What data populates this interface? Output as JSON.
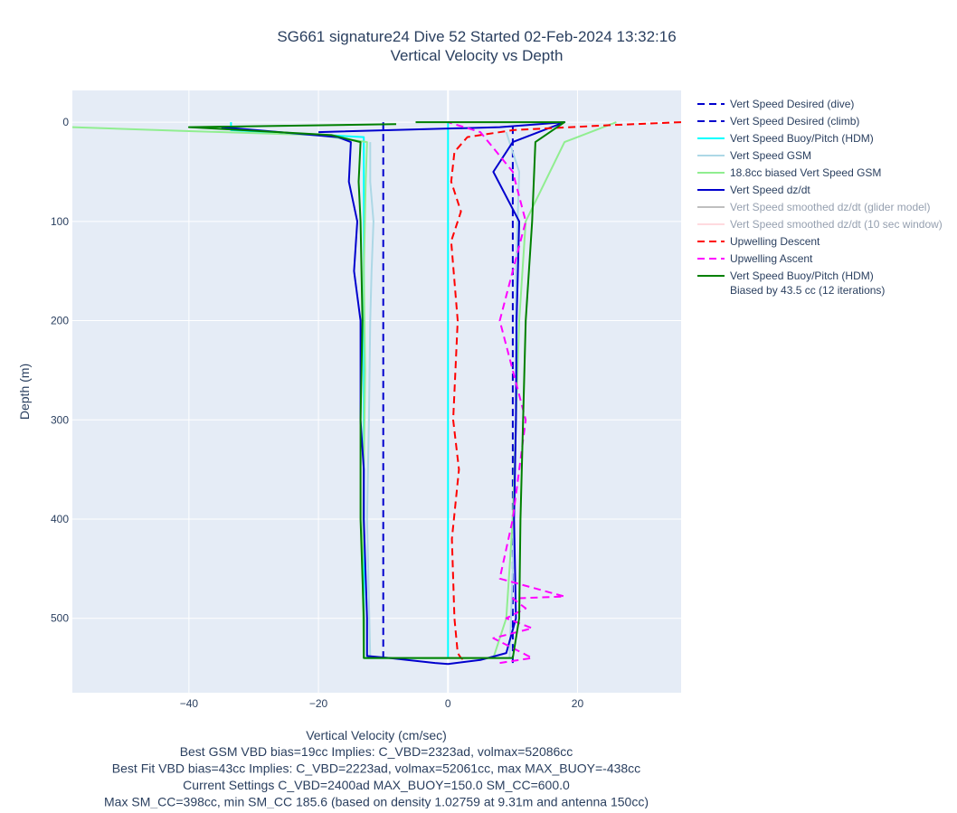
{
  "chart_data": {
    "type": "line",
    "title": "SG661 signature24 Dive 52 Started 02-Feb-2024 13:32:16",
    "subtitle": "Vertical Velocity vs Depth",
    "xlabel": "Vertical Velocity (cm/sec)",
    "ylabel": "Depth (m)",
    "xlim": [
      -58,
      36
    ],
    "ylim": [
      575,
      -32
    ],
    "y_reversed": true,
    "grid": true,
    "legend_position": "right",
    "xticks": [
      -40,
      -20,
      0,
      20
    ],
    "xtick_labels": [
      "−40",
      "−20",
      "0",
      "20"
    ],
    "yticks": [
      0,
      100,
      200,
      300,
      400,
      500
    ],
    "ytick_labels": [
      "0",
      "100",
      "200",
      "300",
      "400",
      "500"
    ],
    "notes": [
      "Best GSM VBD bias=19cc Implies: C_VBD=2323ad, volmax=52086cc",
      "Best Fit VBD bias=43cc Implies: C_VBD=2223ad, volmax=52061cc, max MAX_BUOY=-438cc",
      "Current Settings C_VBD=2400ad MAX_BUOY=150.0 SM_CC=600.0",
      "Max SM_CC=398cc, min SM_CC 185.6 (based on density 1.02759 at 9.31m and antenna 150cc)"
    ],
    "series": [
      {
        "name": "Vert Speed Desired (dive)",
        "color": "#0000cd",
        "dash": "dash",
        "legend_faded": false,
        "x": [
          -10,
          -10
        ],
        "y": [
          0,
          545
        ]
      },
      {
        "name": "Vert Speed Desired (climb)",
        "color": "#0000cd",
        "dash": "dash",
        "legend_faded": false,
        "x": [
          10,
          10
        ],
        "y": [
          545,
          0
        ]
      },
      {
        "name": "Vert Speed Buoy/Pitch (HDM)",
        "color": "#00ffff",
        "dash": "solid",
        "legend_faded": false,
        "x": [
          -33.5,
          -33.5,
          -13,
          -13,
          -13,
          -13,
          0,
          0,
          0,
          0
        ],
        "y": [
          0,
          8,
          15,
          100,
          400,
          540,
          540,
          400,
          50,
          0
        ]
      },
      {
        "name": "Vert Speed GSM",
        "color": "#add8e6",
        "dash": "solid",
        "legend_faded": false,
        "x": [
          -12,
          -12,
          -11.5,
          -11.8,
          -12,
          -12.2,
          -12.5,
          -12,
          9.5,
          10,
          10.5,
          10.5,
          11,
          9
        ],
        "y": [
          20,
          60,
          100,
          150,
          200,
          300,
          400,
          540,
          540,
          450,
          300,
          150,
          50,
          10
        ]
      },
      {
        "name": "18.8cc biased Vert Speed GSM",
        "color": "#90ee90",
        "dash": "solid",
        "legend_faded": false,
        "x": [
          -58,
          -40,
          -20,
          -12.5,
          -12.7,
          -13,
          -12.8,
          -13,
          -13.2,
          -13,
          7,
          9,
          10,
          10.5,
          11,
          12,
          18,
          26
        ],
        "y": [
          5,
          9,
          13,
          20,
          60,
          150,
          250,
          350,
          450,
          540,
          540,
          500,
          400,
          300,
          200,
          100,
          20,
          0
        ]
      },
      {
        "name": "Vert Speed dz/dt",
        "color": "#0000cd",
        "dash": "solid",
        "legend_faded": false,
        "x": [
          -35,
          -17,
          -15,
          -15.3,
          -14,
          -14.5,
          -13.5,
          -13.5,
          -13,
          -13,
          -12.5,
          -12.5,
          -9,
          -2,
          0,
          5,
          9,
          10.5,
          10.2,
          10.5,
          10.6,
          11,
          7,
          10,
          18,
          8,
          -20
        ],
        "y": [
          5,
          15,
          20,
          60,
          100,
          150,
          200,
          300,
          350,
          400,
          500,
          538,
          540,
          545,
          546,
          542,
          535,
          500,
          400,
          300,
          200,
          100,
          50,
          20,
          0,
          5,
          10
        ]
      },
      {
        "name": "Vert Speed smoothed dz/dt (glider model)",
        "color": "#808080",
        "dash": "solid",
        "legend_faded": true,
        "x": [],
        "y": []
      },
      {
        "name": "Vert Speed smoothed dz/dt (10 sec window)",
        "color": "#ffb6c1",
        "dash": "solid",
        "legend_faded": true,
        "x": [],
        "y": []
      },
      {
        "name": "Upwelling Descent",
        "color": "#ff0000",
        "dash": "dash",
        "legend_faded": false,
        "x": [
          36,
          25,
          10,
          3,
          1,
          0.5,
          2,
          0.5,
          1.5,
          0.8,
          1.7,
          0.6,
          1,
          1.5,
          2,
          2.5
        ],
        "y": [
          0,
          3,
          8,
          15,
          30,
          60,
          90,
          120,
          200,
          300,
          350,
          420,
          500,
          535,
          540,
          542
        ]
      },
      {
        "name": "Upwelling Ascent",
        "color": "#ff00ff",
        "dash": "dash",
        "legend_faded": false,
        "x": [
          8,
          13,
          10,
          7,
          13,
          9,
          12,
          10,
          18,
          8,
          10,
          12,
          8,
          12,
          10,
          5,
          0
        ],
        "y": [
          545,
          540,
          530,
          520,
          510,
          500,
          490,
          480,
          478,
          460,
          400,
          300,
          200,
          100,
          50,
          10,
          0
        ]
      },
      {
        "name": "Vert Speed Buoy/Pitch (HDM)\nBiased by 43.5 cc (12 iterations)",
        "color": "#008000",
        "dash": "solid",
        "legend_faded": false,
        "x": [
          -8,
          -40,
          -18,
          -13.5,
          -13.8,
          -13.5,
          -13.2,
          -13.5,
          -13.5,
          -13,
          -13,
          10,
          11,
          11.2,
          11.6,
          12,
          13,
          13.5,
          18,
          -5
        ],
        "y": [
          2,
          5,
          13,
          20,
          60,
          100,
          200,
          300,
          400,
          500,
          540,
          540,
          500,
          400,
          300,
          200,
          100,
          20,
          0,
          0
        ]
      }
    ]
  }
}
